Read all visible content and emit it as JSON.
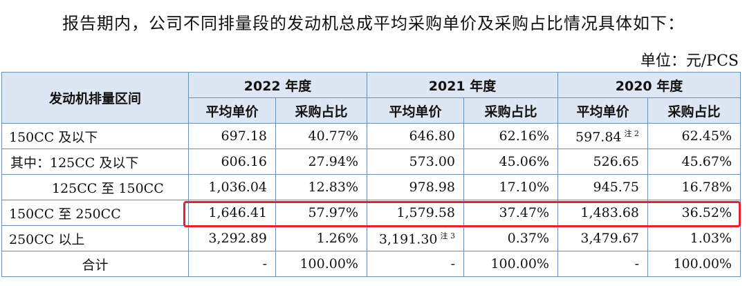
{
  "intro": "报告期内，公司不同排量段的发动机总成平均采购单价及采购占比情况具体如下：",
  "unit": "单位：元/PCS",
  "table": {
    "row_header": "发动机排量区间",
    "years": [
      "2022 年度",
      "2021 年度",
      "2020 年度"
    ],
    "sub_headers": [
      "平均单价",
      "采购占比"
    ],
    "rows": [
      {
        "label": "150CC 及以下",
        "cells": [
          "697.18",
          "40.77%",
          "646.80",
          "62.16%",
          "597.84",
          "62.45%"
        ]
      },
      {
        "label": "其中：125CC 及以下",
        "cells": [
          "606.16",
          "27.94%",
          "573.00",
          "45.06%",
          "526.65",
          "45.67%"
        ]
      },
      {
        "label": "125CC 至 150CC",
        "cells": [
          "1,036.04",
          "12.83%",
          "978.98",
          "17.10%",
          "945.75",
          "16.78%"
        ]
      },
      {
        "label": "150CC 至 250CC",
        "cells": [
          "1,646.41",
          "57.97%",
          "1,579.58",
          "37.47%",
          "1,483.68",
          "36.52%"
        ]
      },
      {
        "label": "250CC 以上",
        "cells": [
          "3,292.89",
          "1.26%",
          "3,191.30",
          "0.37%",
          "3,479.67",
          "1.03%"
        ]
      },
      {
        "label": "合计",
        "cells": [
          "-",
          "100.00%",
          "-",
          "100.00%",
          "-",
          "100.00%"
        ]
      }
    ],
    "notes": {
      "note2": "注 2",
      "note3": "注 3"
    }
  },
  "highlight_color": "#e8202a"
}
